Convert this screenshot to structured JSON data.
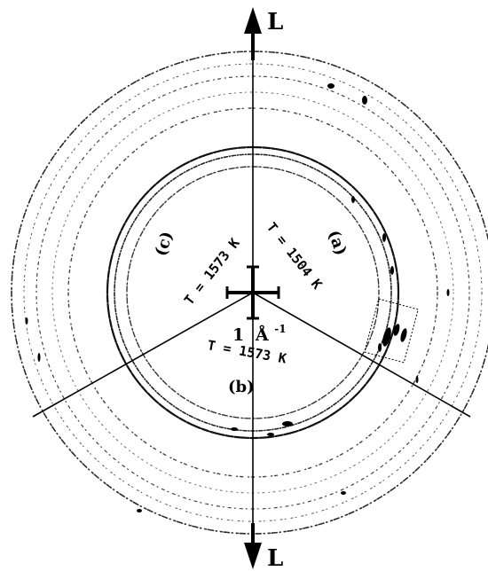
{
  "axis": {
    "top_label": "L",
    "bottom_label": "L"
  },
  "scale_bar": {
    "value": "1",
    "unit": "Å",
    "exponent": "-1"
  },
  "sectors": [
    {
      "label": "(a)",
      "temperature": "T = 1504 K"
    },
    {
      "label": "(b)",
      "temperature": "T = 1573 K"
    },
    {
      "label": "(c)",
      "temperature": "T = 1573 K"
    }
  ],
  "colors": {
    "background": "#ffffff",
    "ink": "#000000",
    "ring_gray": "#8a8a8a"
  }
}
